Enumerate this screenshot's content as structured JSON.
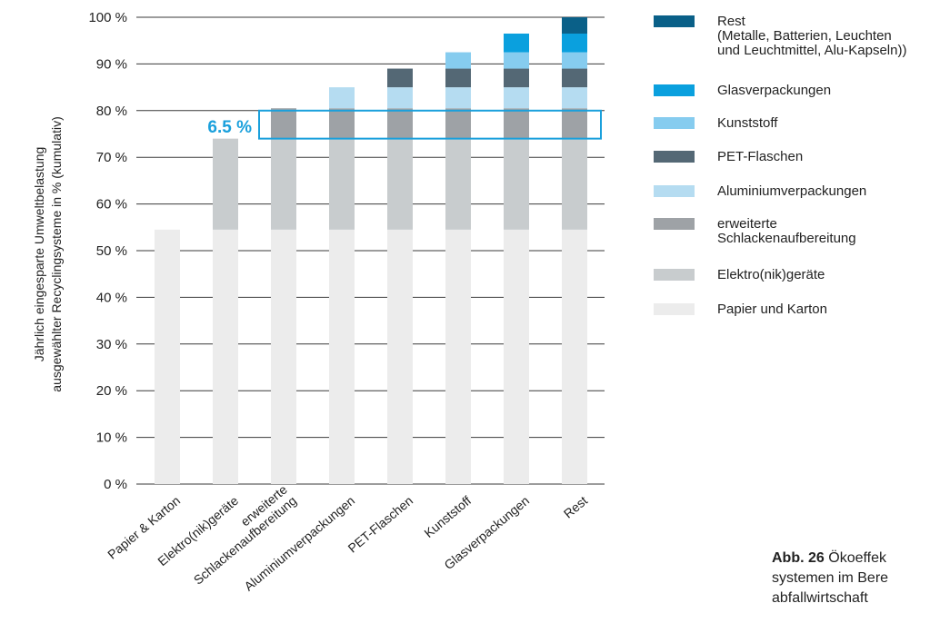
{
  "chart_data": {
    "type": "bar",
    "stacked": true,
    "cumulative": true,
    "ylabel_line1": "Jährlich eingesparte Umweltbelastung",
    "ylabel_line2": "ausgewählter Recyclingsysteme in % (kumulativ)",
    "ylim": [
      0,
      100
    ],
    "yticks": [
      "0 %",
      "10 %",
      "20 %",
      "30 %",
      "40 %",
      "50 %",
      "60 %",
      "70 %",
      "80 %",
      "90 %",
      "100 %"
    ],
    "grid": true,
    "legend_position": "right",
    "categories": [
      [
        "Papier & Karton"
      ],
      [
        "Elektro(nik)geräte"
      ],
      [
        "erweiterte",
        "Schlackenaufbereitung"
      ],
      [
        "Aluminiumverpackungen"
      ],
      [
        "PET-Flaschen"
      ],
      [
        "Kunststoff"
      ],
      [
        "Glasverpackungen"
      ],
      [
        "Rest"
      ]
    ],
    "series": [
      {
        "name": "Papier und Karton",
        "color": "#ececec",
        "values": [
          54.5,
          54.5,
          54.5,
          54.5,
          54.5,
          54.5,
          54.5,
          54.5
        ]
      },
      {
        "name": "Elektro(nik)geräte",
        "color": "#c8ccce",
        "values": [
          0,
          19.5,
          19.5,
          19.5,
          19.5,
          19.5,
          19.5,
          19.5
        ]
      },
      {
        "name": "erweiterte Schlackenaufbereitung",
        "color": "#9ea2a6",
        "values": [
          0,
          0,
          6.5,
          6.5,
          6.5,
          6.5,
          6.5,
          6.5
        ]
      },
      {
        "name": "Aluminiumverpackungen",
        "color": "#b5dcf1",
        "values": [
          0,
          0,
          0,
          4.5,
          4.5,
          4.5,
          4.5,
          4.5
        ]
      },
      {
        "name": "PET-Flaschen",
        "color": "#546875",
        "values": [
          0,
          0,
          0,
          0,
          4,
          4,
          4,
          4
        ]
      },
      {
        "name": "Kunststoff",
        "color": "#86ccef",
        "values": [
          0,
          0,
          0,
          0,
          0,
          3.5,
          3.5,
          3.5
        ]
      },
      {
        "name": "Glasverpackungen",
        "color": "#0aa0de",
        "values": [
          0,
          0,
          0,
          0,
          0,
          0,
          4,
          4
        ]
      },
      {
        "name": "Rest (Metalle, Batterien, Leuchten und Leuchtmittel, Alu-Kapseln)",
        "color": "#0a6088",
        "values": [
          0,
          0,
          0,
          0,
          0,
          0,
          0,
          3.5
        ]
      }
    ],
    "legend": [
      {
        "lines": [
          "Rest",
          "(Metalle, Batterien, Leuchten",
          "und Leuchtmittel, Alu-Kapseln))"
        ],
        "color": "#0a6088"
      },
      {
        "lines": [
          "Glasverpackungen"
        ],
        "color": "#0aa0de"
      },
      {
        "lines": [
          "Kunststoff"
        ],
        "color": "#86ccef"
      },
      {
        "lines": [
          "PET-Flaschen"
        ],
        "color": "#546875"
      },
      {
        "lines": [
          "Aluminiumverpackungen"
        ],
        "color": "#b5dcf1"
      },
      {
        "lines": [
          "erweiterte",
          "Schlackenaufbereitung"
        ],
        "color": "#9ea2a6"
      },
      {
        "lines": [
          "Elektro(nik)geräte"
        ],
        "color": "#c8ccce"
      },
      {
        "lines": [
          "Papier und Karton"
        ],
        "color": "#ececec"
      }
    ],
    "highlight": {
      "label": "6.5 %",
      "range": [
        74,
        80
      ],
      "color": "#1aa0dc"
    }
  },
  "caption": {
    "abb": "Abb. 26",
    "line1": "Ökoeffek",
    "line2": "systemen im Bere",
    "line3": "abfallwirtschaft"
  }
}
